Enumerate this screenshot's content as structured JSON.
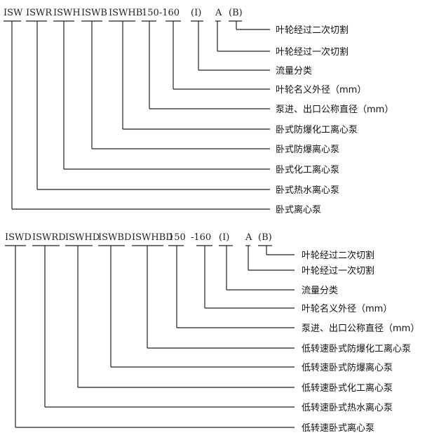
{
  "diagrams": [
    {
      "tokens": [
        "ISW",
        "ISWR",
        "ISWH",
        "ISWB",
        "ISWHB",
        "150-160",
        "(I)",
        "A",
        "(B)"
      ],
      "code_parts": [
        "ISW",
        "ISWR",
        "ISWH",
        "ISWB",
        "ISWHB",
        "150",
        "160",
        "(I)",
        "A",
        "(B)"
      ],
      "labels": [
        "叶轮经过二次切割",
        "叶轮经过一次切割",
        "流量分类",
        "叶轮名义外径（mm）",
        "泵进、出口公称直径（mm）",
        "卧式防爆化工离心泵",
        "卧式防爆离心泵",
        "卧式化工离心泵",
        "卧式热水离心泵",
        "卧式离心泵"
      ]
    },
    {
      "tokens": [
        "ISWD",
        "ISWRD",
        "ISWHD",
        "ISWBD",
        "ISWHBD",
        "150",
        "-160",
        "(I)",
        "A",
        "(B)"
      ],
      "code_parts": [
        "ISWD",
        "ISWRD",
        "ISWHD",
        "ISWBD",
        "ISWHBD",
        "150",
        "160",
        "(I)",
        "A",
        "(B)"
      ],
      "labels": [
        "叶轮经过二次切割",
        "叶轮经过一次切割",
        "流量分类",
        "叶轮名义外径（mm）",
        "泵进、出口公称直径（mm）",
        "低转速卧式防爆化工离心泵",
        "低转速卧式防爆离心泵",
        "低转速卧式化工离心泵",
        "低转速卧式热水离心泵",
        "低转速卧式离心泵"
      ]
    }
  ]
}
